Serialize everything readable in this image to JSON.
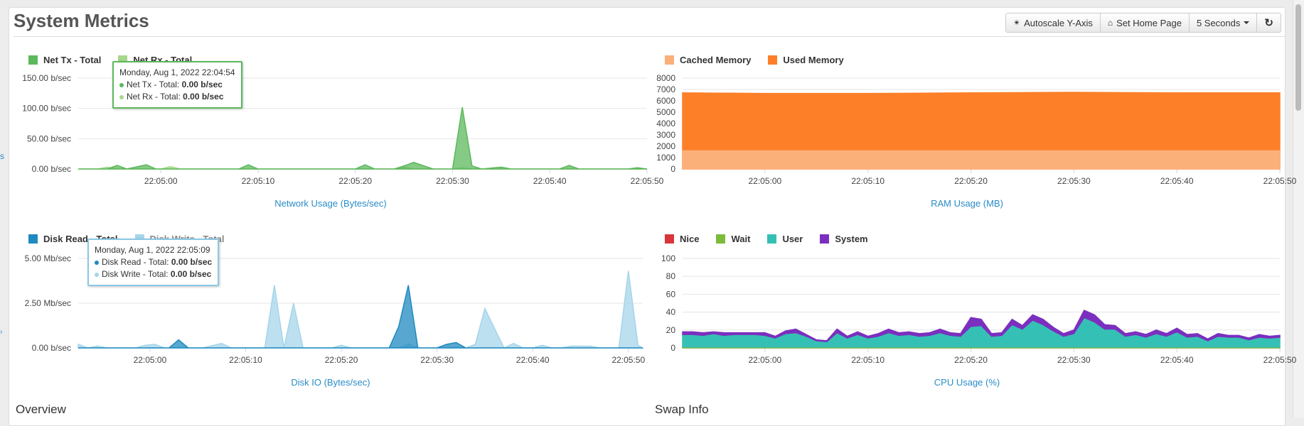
{
  "header": {
    "title": "System Metrics",
    "buttons": {
      "autoscale": "Autoscale Y-Axis",
      "home": "Set Home Page",
      "interval": "5 Seconds"
    }
  },
  "left_edge": {
    "link": "s",
    "mark": "›"
  },
  "colors": {
    "net_tx": "#5cb85c",
    "net_rx": "#a6d78a",
    "cached": "#fbb07a",
    "used": "#fd7f28",
    "disk_read": "#1f8ac0",
    "disk_write": "#a6d5ea",
    "nice": "#d9363a",
    "wait": "#7dbb3c",
    "user": "#35c0b5",
    "system": "#7b2fbf"
  },
  "sections": {
    "overview": "Overview",
    "swap": "Swap Info"
  },
  "network_legend": {
    "tx": "Net Tx - Total",
    "rx": "Net Rx - Total"
  },
  "network_tooltip": {
    "date": "Monday, Aug 1, 2022 22:04:54",
    "tx_label": "Net Tx - Total:",
    "tx_value": "0.00 b/sec",
    "rx_label": "Net Rx - Total:",
    "rx_value": "0.00 b/sec"
  },
  "ram_legend": {
    "cached": "Cached Memory",
    "used": "Used Memory"
  },
  "disk_legend": {
    "read": "Disk Read - Total",
    "write": "Disk Write - Total"
  },
  "disk_tooltip": {
    "date": "Monday, Aug 1, 2022 22:05:09",
    "read_label": "Disk Read - Total:",
    "read_value": "0.00 b/sec",
    "write_label": "Disk Write - Total:",
    "write_value": "0.00 b/sec"
  },
  "cpu_legend": {
    "nice": "Nice",
    "wait": "Wait",
    "user": "User",
    "system": "System"
  },
  "chart_data": [
    {
      "id": "network",
      "type": "area",
      "title": "Network Usage (Bytes/sec)",
      "x_range_seconds": [
        -8.5,
        50
      ],
      "x_ticks": [
        0,
        10,
        20,
        30,
        40,
        50
      ],
      "x_tick_labels": [
        "22:05:00",
        "22:05:10",
        "22:05:20",
        "22:05:30",
        "22:05:40",
        "22:05:50"
      ],
      "ylim": [
        0,
        150
      ],
      "y_ticks": [
        0,
        50,
        100,
        150
      ],
      "y_tick_labels": [
        "0.00 b/sec",
        "50.00 b/sec",
        "100.00 b/sec",
        "150.00 b/sec"
      ],
      "series": [
        {
          "name": "Net Tx - Total",
          "color": "#5cb85c",
          "x": [
            -8.5,
            -5.5,
            -4.5,
            -3.5,
            -1.5,
            -0.5,
            1,
            3,
            8,
            9,
            10,
            20,
            21,
            22,
            24,
            25,
            26,
            28,
            29,
            30,
            31,
            32,
            33,
            35,
            36,
            37,
            38,
            41,
            42,
            43,
            48,
            49,
            50
          ],
          "values": [
            0,
            0,
            6,
            0,
            7,
            0,
            0,
            0,
            0,
            7,
            0,
            0,
            7,
            0,
            0,
            5,
            11,
            0,
            0,
            0,
            102,
            5,
            0,
            3,
            0,
            0,
            0,
            0,
            6,
            0,
            0,
            2,
            0
          ]
        },
        {
          "name": "Net Rx - Total",
          "color": "#a6d78a",
          "x": [
            -8.5,
            -6.5,
            -5.5,
            -4.5,
            -2,
            0,
            1,
            2,
            4,
            24,
            25,
            26,
            30,
            31,
            32,
            50
          ],
          "values": [
            0,
            0,
            3,
            0,
            0,
            0,
            4,
            0,
            0,
            0,
            3,
            0,
            0,
            2,
            0,
            0
          ]
        }
      ]
    },
    {
      "id": "ram",
      "type": "area",
      "title": "RAM Usage (MB)",
      "x_range_seconds": [
        -8,
        50
      ],
      "x_ticks": [
        0,
        10,
        20,
        30,
        40,
        50
      ],
      "x_tick_labels": [
        "22:05:00",
        "22:05:10",
        "22:05:20",
        "22:05:30",
        "22:05:40",
        "22:05:50"
      ],
      "ylim": [
        0,
        8000
      ],
      "y_ticks": [
        0,
        1000,
        2000,
        3000,
        4000,
        5000,
        6000,
        7000,
        8000
      ],
      "y_tick_labels": [
        "0",
        "1000",
        "2000",
        "3000",
        "4000",
        "5000",
        "6000",
        "7000",
        "8000"
      ],
      "series": [
        {
          "name": "Cached Memory",
          "color": "#fbb07a",
          "x": [
            -8,
            0,
            10,
            20,
            30,
            40,
            50
          ],
          "values": [
            1600,
            1600,
            1600,
            1600,
            1600,
            1600,
            1600
          ]
        },
        {
          "name": "Used Memory",
          "color": "#fd7f28",
          "x": [
            -8,
            0,
            10,
            20,
            30,
            40,
            50
          ],
          "values": [
            6700,
            6650,
            6650,
            6700,
            6750,
            6700,
            6700
          ]
        }
      ]
    },
    {
      "id": "disk",
      "type": "area",
      "title": "Disk IO (Bytes/sec)",
      "x_range_seconds": [
        -7.5,
        51.5
      ],
      "x_ticks": [
        0,
        10,
        20,
        30,
        40,
        50
      ],
      "x_tick_labels": [
        "22:05:00",
        "22:05:10",
        "22:05:20",
        "22:05:30",
        "22:05:40",
        "22:05:50"
      ],
      "ylim": [
        0,
        5
      ],
      "y_ticks": [
        0,
        2.5,
        5
      ],
      "y_tick_labels": [
        "0.00 b/sec",
        "2.50 Mb/sec",
        "5.00 Mb/sec"
      ],
      "series": [
        {
          "name": "Disk Read - Total",
          "color": "#1f8ac0",
          "x": [
            -7.5,
            2,
            3,
            4,
            25,
            26,
            27,
            28,
            29,
            30,
            31,
            32,
            33,
            34,
            51.5
          ],
          "values": [
            0,
            0,
            0.45,
            0,
            0,
            1.2,
            3.5,
            0,
            0,
            0,
            0.2,
            0.3,
            0,
            0,
            0
          ]
        },
        {
          "name": "Disk Write - Total",
          "color": "#a6d5ea",
          "x": [
            -7.5,
            -6.5,
            -5.5,
            -4.5,
            -3.5,
            -1.5,
            -0.5,
            0.5,
            1.5,
            5.5,
            7.5,
            8.5,
            12,
            13,
            14,
            15,
            16,
            19,
            20,
            21,
            26,
            27,
            28,
            33,
            34,
            35,
            36,
            37,
            38,
            39,
            40,
            41,
            42,
            43,
            44,
            46,
            47,
            48,
            49,
            50,
            51,
            51.5
          ],
          "values": [
            0.2,
            0,
            0.1,
            0,
            0,
            0,
            0.15,
            0.2,
            0,
            0,
            0.25,
            0,
            0,
            3.5,
            0,
            2.5,
            0,
            0,
            0.15,
            0,
            0,
            0.2,
            0,
            0,
            0.2,
            2.2,
            1.1,
            0,
            0.25,
            0,
            0,
            0.15,
            0,
            0,
            0.1,
            0.1,
            0,
            0,
            0,
            4.3,
            0.15,
            0
          ]
        }
      ]
    },
    {
      "id": "cpu",
      "type": "area",
      "title": "CPU Usage (%)",
      "x_range_seconds": [
        -8,
        50
      ],
      "x_ticks": [
        0,
        10,
        20,
        30,
        40,
        50
      ],
      "x_tick_labels": [
        "22:05:00",
        "22:05:10",
        "22:05:20",
        "22:05:30",
        "22:05:40",
        "22:05:50"
      ],
      "ylim": [
        0,
        100
      ],
      "y_ticks": [
        0,
        20,
        40,
        60,
        80,
        100
      ],
      "y_tick_labels": [
        "0",
        "20",
        "40",
        "60",
        "80",
        "100"
      ],
      "stacked": true,
      "x": [
        -8,
        -7,
        -6,
        -5,
        -4,
        -3,
        -2,
        -1,
        0,
        1,
        2,
        3,
        4,
        5,
        6,
        7,
        8,
        9,
        10,
        11,
        12,
        13,
        14,
        15,
        16,
        17,
        18,
        19,
        20,
        21,
        22,
        23,
        24,
        25,
        26,
        27,
        28,
        29,
        30,
        31,
        32,
        33,
        34,
        35,
        36,
        37,
        38,
        39,
        40,
        41,
        42,
        43,
        44,
        45,
        46,
        47,
        48,
        49,
        50
      ],
      "series": [
        {
          "name": "Nice",
          "color": "#d9363a",
          "values": [
            0,
            0,
            0,
            0,
            0,
            0,
            0,
            0,
            0,
            0,
            0,
            0,
            0,
            0,
            0,
            0,
            0,
            0,
            0,
            0,
            0,
            0,
            0,
            0,
            0,
            0,
            0,
            0,
            0,
            0,
            0,
            0,
            0,
            0,
            0,
            0,
            0,
            0,
            0,
            0,
            0,
            0,
            0,
            0,
            0,
            0,
            0,
            0,
            0,
            0,
            0,
            0,
            0,
            0,
            0,
            0,
            0,
            0,
            0
          ]
        },
        {
          "name": "Wait",
          "color": "#7dbb3c",
          "values": [
            1,
            1,
            1,
            1,
            1,
            1,
            1,
            1,
            1,
            1,
            1,
            1,
            1,
            1,
            1,
            1,
            1,
            1,
            1,
            1,
            1,
            1,
            1,
            1,
            1,
            1,
            1,
            1,
            1,
            1,
            1,
            1,
            1,
            1,
            1,
            1,
            1,
            1,
            1,
            1,
            1,
            1,
            1,
            1,
            1,
            1,
            1,
            1,
            1,
            1,
            1,
            1,
            1,
            1,
            1,
            1,
            1,
            1,
            1
          ]
        },
        {
          "name": "User",
          "color": "#35c0b5",
          "values": [
            14,
            14,
            13,
            15,
            13,
            14,
            14,
            14,
            13,
            10,
            15,
            16,
            12,
            7,
            6,
            16,
            10,
            14,
            10,
            12,
            16,
            13,
            14,
            12,
            13,
            16,
            13,
            12,
            23,
            24,
            12,
            13,
            25,
            20,
            30,
            25,
            18,
            12,
            15,
            33,
            28,
            20,
            20,
            12,
            14,
            11,
            15,
            12,
            17,
            11,
            12,
            7,
            12,
            11,
            11,
            8,
            11,
            10,
            11
          ]
        },
        {
          "name": "System",
          "color": "#7b2fbf",
          "values": [
            3,
            3,
            3,
            2,
            3,
            2,
            2,
            2,
            3,
            2,
            3,
            4,
            2,
            1,
            1,
            4,
            2,
            3,
            2,
            3,
            4,
            3,
            3,
            3,
            3,
            4,
            3,
            3,
            10,
            7,
            3,
            3,
            6,
            4,
            6,
            6,
            4,
            3,
            4,
            8,
            8,
            5,
            4,
            3,
            3,
            3,
            4,
            3,
            4,
            3,
            3,
            2,
            3,
            2,
            2,
            2,
            3,
            2,
            2
          ]
        }
      ]
    }
  ]
}
